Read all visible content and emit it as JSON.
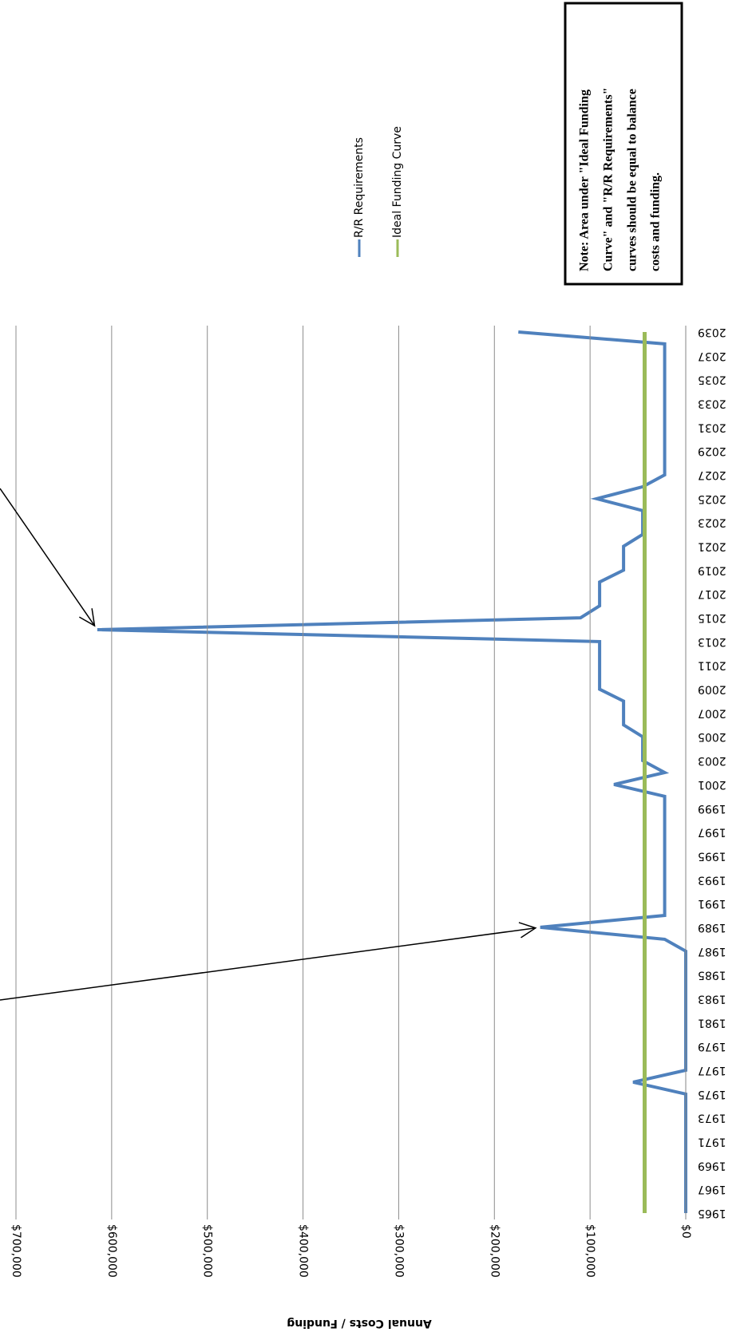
{
  "chart_data": {
    "type": "line",
    "title": "",
    "xlabel": "",
    "ylabel": "Annual Costs / Funding",
    "ylim": [
      0,
      700000
    ],
    "yticks": [
      0,
      100000,
      200000,
      300000,
      400000,
      500000,
      600000,
      700000
    ],
    "ytick_labels": [
      "$0",
      "$100,000",
      "$200,000",
      "$300,000",
      "$400,000",
      "$500,000",
      "$600,000",
      "$700,000"
    ],
    "xlim": [
      1965,
      2039
    ],
    "xtick_labels": [
      "1965",
      "1967",
      "1969",
      "1971",
      "1973",
      "1975",
      "1977",
      "1979",
      "1981",
      "1983",
      "1985",
      "1987",
      "1989",
      "1991",
      "1993",
      "1995",
      "1997",
      "1999",
      "2001",
      "2003",
      "2005",
      "2007",
      "2009",
      "2011",
      "2013",
      "2015",
      "2017",
      "2019",
      "2021",
      "2023",
      "2025",
      "2027",
      "2029",
      "2031",
      "2033",
      "2035",
      "2037",
      "2039"
    ],
    "grid": true,
    "legend": "top-right",
    "orientation": "rotated-90",
    "series": [
      {
        "name": "R/R Requirements",
        "color": "#4f81bd",
        "x": [
          1965,
          1975,
          1976,
          1977,
          1987,
          1988,
          1989,
          1990,
          1999,
          2000,
          2001,
          2002,
          2003,
          2005,
          2006,
          2008,
          2009,
          2011,
          2012,
          2013,
          2014,
          2015,
          2016,
          2018,
          2019,
          2021,
          2022,
          2024,
          2025,
          2026,
          2027,
          2037,
          2038,
          2039
        ],
        "y": [
          0,
          0,
          55000,
          0,
          0,
          22000,
          152000,
          22000,
          22000,
          22000,
          75000,
          22000,
          45000,
          45000,
          65000,
          65000,
          90000,
          90000,
          90000,
          90000,
          615000,
          110000,
          90000,
          90000,
          65000,
          65000,
          45000,
          45000,
          93000,
          45000,
          22000,
          22000,
          22000,
          175000
        ]
      },
      {
        "name": "Ideal Funding Curve",
        "color": "#9bbb59",
        "x": [
          1965,
          2039
        ],
        "y": [
          43000,
          43000
        ]
      }
    ],
    "annotations": [
      {
        "type": "arrow",
        "target_x": 1989,
        "target_y": 152000
      },
      {
        "type": "arrow",
        "target_x": 2014,
        "target_y": 615000
      }
    ],
    "note": {
      "lines": [
        "Note: Area under \"Ideal Funding",
        "Curve\" and \"R/R Requirements\"",
        "curves should be equal to balance",
        "costs and funding."
      ]
    }
  }
}
